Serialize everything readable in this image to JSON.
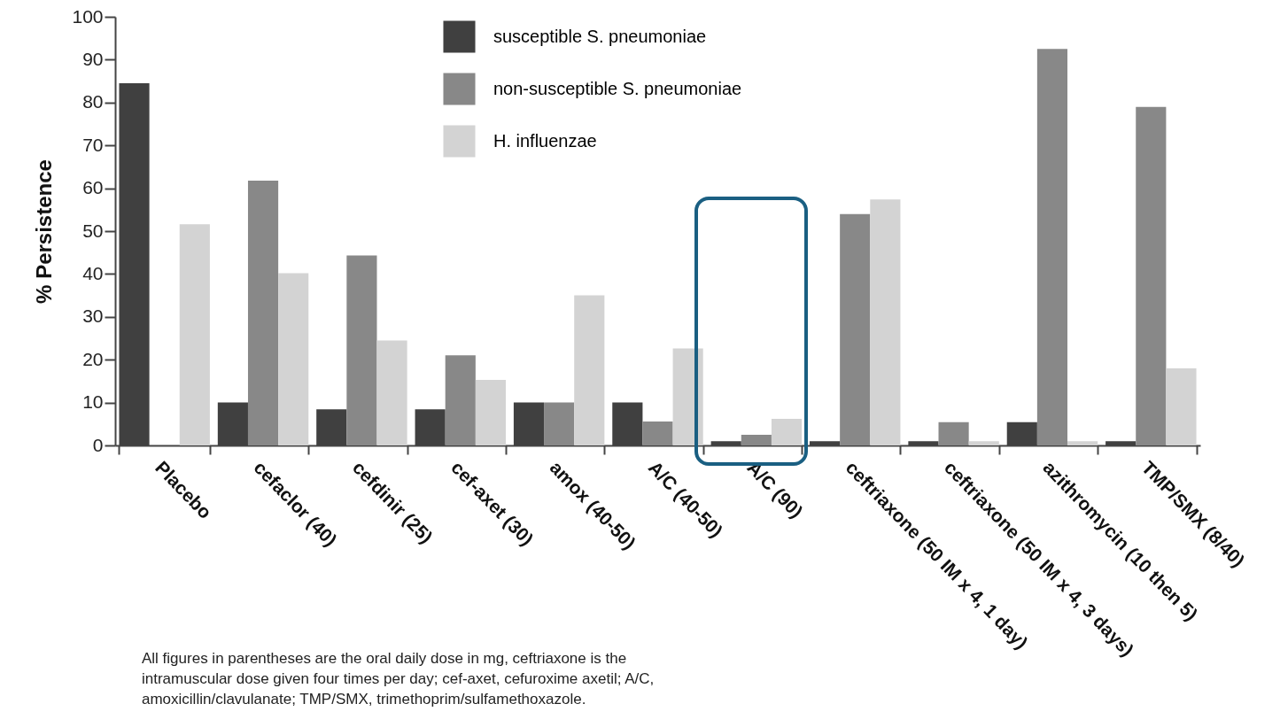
{
  "chart_data": {
    "type": "bar",
    "ylabel": "% Persistence",
    "categories": [
      "Placebo",
      "cefaclor (40)",
      "cefdinir (25)",
      "cef-axet (30)",
      "amox (40-50)",
      "A/C (40-50)",
      "A/C (90)",
      "ceftriaxone (50 IM x 4, 1 day)",
      "ceftriaxone (50 IM x 4, 3 days)",
      "azithromycin (10 then 5)",
      "TMP/SMX (8/40)"
    ],
    "series": [
      {
        "name": "susceptible S. pneumoniae",
        "color": "#404040",
        "values": [
          84.5,
          10,
          8.4,
          8.4,
          10,
          10,
          1,
          1,
          1,
          5.4,
          1
        ]
      },
      {
        "name": "non-susceptible S. pneumoniae",
        "color": "#888888",
        "values": [
          null,
          61.8,
          44.3,
          21,
          10,
          5.6,
          2.5,
          54,
          5.4,
          92.5,
          79
        ]
      },
      {
        "name": "H. influenzae",
        "color": "#d3d3d3",
        "values": [
          51.6,
          40.2,
          24.5,
          15.3,
          35,
          22.6,
          6.2,
          57.4,
          1,
          1,
          18
        ]
      }
    ],
    "ylim": [
      0,
      100
    ],
    "yticks": [
      0,
      10,
      20,
      30,
      40,
      50,
      60,
      70,
      80,
      90,
      100
    ],
    "grid": false,
    "legend": "top",
    "annotations": [
      "All figures in parentheses are the oral daily dose in mg, ceftriaxone is the intramuscular dose given four times per day; cef-axet, cefuroxime axetil; A/C, amoxicillin/clavulanate; TMP/SMX, trimethoprim/sulfamethoxazole."
    ]
  }
}
